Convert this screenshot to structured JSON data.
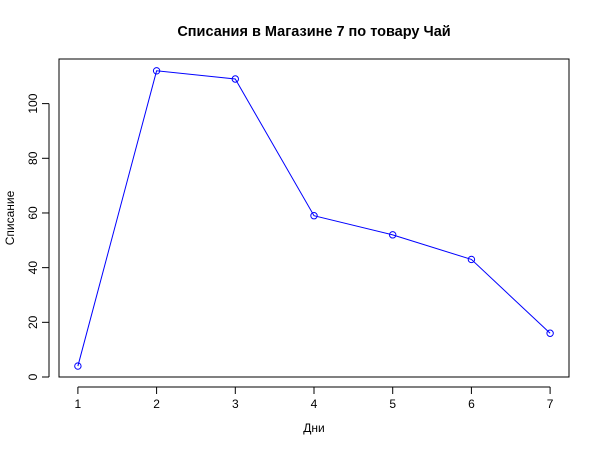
{
  "chart_data": {
    "type": "line",
    "title": "Списания в Магазине 7 по товару Чай",
    "xlabel": "Дни",
    "ylabel": "Списание",
    "x": [
      1,
      2,
      3,
      4,
      5,
      6,
      7
    ],
    "series": [
      {
        "values": [
          4,
          112,
          109,
          59,
          52,
          43,
          16
        ],
        "color": "#0000ff",
        "marker": "open-circle"
      }
    ],
    "x_ticks": [
      "1",
      "2",
      "3",
      "4",
      "5",
      "6",
      "7"
    ],
    "y_ticks": [
      "0",
      "20",
      "40",
      "60",
      "80",
      "100"
    ],
    "xlim": [
      0.76,
      7.24
    ],
    "ylim": [
      0,
      116.32
    ],
    "grid": false,
    "legend": "none"
  }
}
